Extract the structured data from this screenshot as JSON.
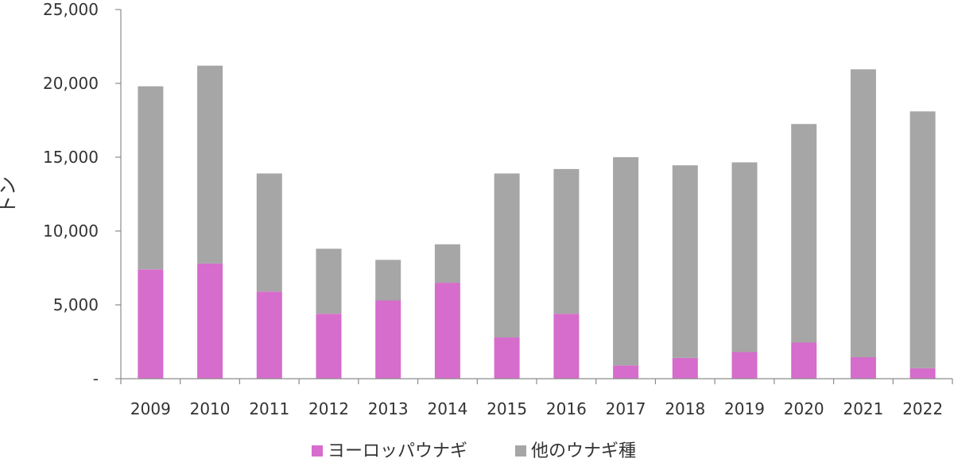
{
  "chart_data": {
    "type": "bar",
    "stacked": true,
    "title": "",
    "xlabel": "",
    "ylabel": "トン",
    "ylim": [
      0,
      25000
    ],
    "yticks": [
      "-",
      "5,000",
      "10,000",
      "15,000",
      "20,000",
      "25,000"
    ],
    "ytick_values": [
      0,
      5000,
      10000,
      15000,
      20000,
      25000
    ],
    "grid": false,
    "legend_position": "bottom",
    "categories": [
      "2009",
      "2010",
      "2011",
      "2012",
      "2013",
      "2014",
      "2015",
      "2016",
      "2017",
      "2018",
      "2019",
      "2020",
      "2021",
      "2022"
    ],
    "series": [
      {
        "name": "ヨーロッパウナギ",
        "color": "#d66ccc",
        "values": [
          7400,
          7800,
          5900,
          4400,
          5300,
          6500,
          2800,
          4400,
          900,
          1400,
          1800,
          2450,
          1450,
          700
        ]
      },
      {
        "name": "他のウナギ種",
        "color": "#a6a6a6",
        "values": [
          12400,
          13400,
          8000,
          4400,
          2750,
          2600,
          11100,
          9800,
          14100,
          13050,
          12850,
          14800,
          19500,
          17400
        ]
      }
    ]
  }
}
